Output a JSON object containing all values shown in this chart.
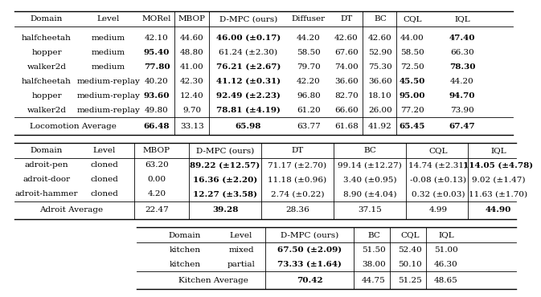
{
  "table1": {
    "headers": [
      "Domain",
      "Level",
      "MORel",
      "MBOP",
      "D-MPC (ours)",
      "Diffuser",
      "DT",
      "BC",
      "CQL",
      "IQL"
    ],
    "rows": [
      [
        "halfcheetah",
        "medium",
        "42.10",
        "44.60",
        "46.00 (±0.17)",
        "44.20",
        "42.60",
        "42.60",
        "44.00",
        "47.40"
      ],
      [
        "hopper",
        "medium",
        "95.40",
        "48.80",
        "61.24 (±2.30)",
        "58.50",
        "67.60",
        "52.90",
        "58.50",
        "66.30"
      ],
      [
        "walker2d",
        "medium",
        "77.80",
        "41.00",
        "76.21 (±2.67)",
        "79.70",
        "74.00",
        "75.30",
        "72.50",
        "78.30"
      ],
      [
        "halfcheetah",
        "medium-replay",
        "40.20",
        "42.30",
        "41.12 (±0.31)",
        "42.20",
        "36.60",
        "36.60",
        "45.50",
        "44.20"
      ],
      [
        "hopper",
        "medium-replay",
        "93.60",
        "12.40",
        "92.49 (±2.23)",
        "96.80",
        "82.70",
        "18.10",
        "95.00",
        "94.70"
      ],
      [
        "walker2d",
        "medium-replay",
        "49.80",
        "9.70",
        "78.81 (±4.19)",
        "61.20",
        "66.60",
        "26.00",
        "77.20",
        "73.90"
      ]
    ],
    "avg_row": [
      "Locomotion Average",
      "",
      "66.48",
      "33.13",
      "65.98",
      "63.77",
      "61.68",
      "41.92",
      "65.45",
      "67.47"
    ],
    "row_bold": [
      [
        4,
        9
      ],
      [
        2
      ],
      [
        2,
        4,
        9
      ],
      [
        4,
        8
      ],
      [
        2,
        4,
        8,
        9
      ],
      [
        4
      ]
    ],
    "avg_bold": [
      2,
      4,
      8,
      9
    ],
    "col_sep_after": [
      1,
      2,
      4,
      6,
      7
    ]
  },
  "table2": {
    "headers": [
      "Domain",
      "Level",
      "MBOP",
      "D-MPC (ours)",
      "DT",
      "BC",
      "CQL",
      "IQL"
    ],
    "rows": [
      [
        "adroit-pen",
        "cloned",
        "63.20",
        "89.22 (±12.57)",
        "71.17 (±2.70)",
        "99.14 (±12.27)",
        "14.74 (±2.31)",
        "114.05 (±4.78)"
      ],
      [
        "adroit-door",
        "cloned",
        "0.00",
        "16.36 (±2.20)",
        "11.18 (±0.96)",
        "3.40 (±0.95)",
        "-0.08 (±0.13)",
        "9.02 (±1.47)"
      ],
      [
        "adroit-hammer",
        "cloned",
        "4.20",
        "12.27 (±3.58)",
        "2.74 (±0.22)",
        "8.90 (±4.04)",
        "0.32 (±0.03)",
        "11.63 (±1.70)"
      ]
    ],
    "avg_row": [
      "Adroit Average",
      "",
      "22.47",
      "39.28",
      "28.36",
      "37.15",
      "4.99",
      "44.90"
    ],
    "row_bold": [
      [
        3,
        7
      ],
      [
        3
      ],
      [
        3
      ]
    ],
    "avg_bold": [
      3,
      7
    ],
    "col_sep_after": [
      1,
      2,
      3,
      4,
      5,
      6
    ]
  },
  "table3": {
    "headers": [
      "Domain",
      "Level",
      "D-MPC (ours)",
      "BC",
      "CQL",
      "IQL"
    ],
    "rows": [
      [
        "kitchen",
        "mixed",
        "67.50 (±2.09)",
        "51.50",
        "52.40",
        "51.00"
      ],
      [
        "kitchen",
        "partial",
        "73.33 (±1.64)",
        "38.00",
        "50.10",
        "46.30"
      ]
    ],
    "avg_row": [
      "Kitchen Average",
      "",
      "70.42",
      "44.75",
      "51.25",
      "48.65"
    ],
    "row_bold": [
      [
        2
      ],
      [
        2
      ]
    ],
    "avg_bold": [
      2
    ],
    "col_sep_after": [
      1,
      2,
      3,
      4
    ]
  }
}
